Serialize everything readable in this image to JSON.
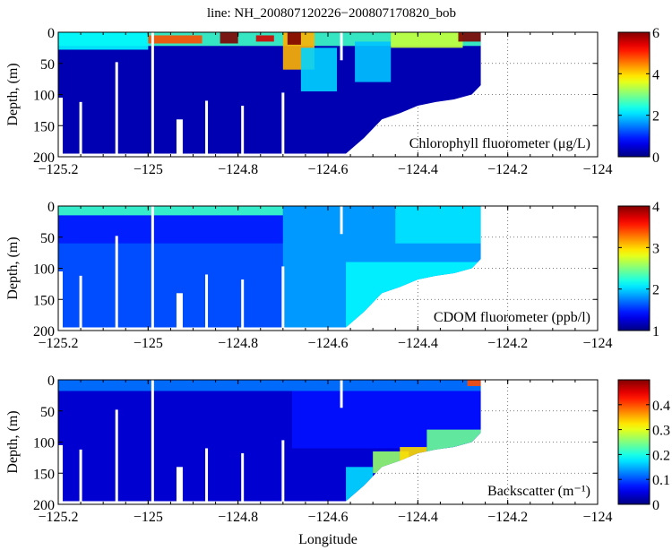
{
  "chart_data": {
    "type": "heatmap",
    "title": "line: NH_200807120226−200807170820_bob",
    "xlabel": "Longitude",
    "xlim": [
      -125.2,
      -124
    ],
    "xticks": [
      -125.2,
      -125,
      -124.8,
      -124.6,
      -124.4,
      -124.2,
      -124
    ],
    "xtick_labels": [
      "−125.2",
      "−125",
      "−124.8",
      "−124.6",
      "−124.4",
      "−124.2",
      "−124"
    ],
    "ylabel": "Depth, (m)",
    "ylim": [
      0,
      200
    ],
    "yticks": [
      0,
      50,
      100,
      150,
      200
    ],
    "grid": "dotted",
    "data_extent": {
      "lon_min": -125.2,
      "lon_max": -124.26,
      "bottom_profile": [
        [
          -125.2,
          105
        ],
        [
          -125.19,
          105
        ],
        [
          -125.19,
          195
        ],
        [
          -124.56,
          195
        ],
        [
          -124.52,
          170
        ],
        [
          -124.48,
          140
        ],
        [
          -124.44,
          130
        ],
        [
          -124.4,
          118
        ],
        [
          -124.36,
          112
        ],
        [
          -124.32,
          108
        ],
        [
          -124.28,
          100
        ],
        [
          -124.26,
          85
        ],
        [
          -124.26,
          0
        ]
      ]
    },
    "gaps": [
      {
        "lon": -125.15,
        "top": 112,
        "bottom": 195
      },
      {
        "lon": -125.07,
        "top": 48,
        "bottom": 195
      },
      {
        "lon": -124.99,
        "top": 0,
        "bottom": 195
      },
      {
        "lon": -124.93,
        "top": 140,
        "bottom": 195,
        "wide": true
      },
      {
        "lon": -124.87,
        "top": 110,
        "bottom": 195
      },
      {
        "lon": -124.79,
        "top": 118,
        "bottom": 195
      },
      {
        "lon": -124.7,
        "top": 97,
        "bottom": 195
      },
      {
        "lon": -124.57,
        "top": 0,
        "bottom": 45
      }
    ],
    "panels": [
      {
        "name": "chlorophyll",
        "label": "Chlorophyll fluorometer (μg/L)",
        "clim": [
          0,
          6
        ],
        "cbar_ticks": [
          "0",
          "2",
          "4",
          "6"
        ],
        "cbar_tick_values": [
          0,
          2,
          4,
          6
        ],
        "base_value": 0.3,
        "features": [
          {
            "lon": [
              -125.2,
              -124.26
            ],
            "depth": [
              0,
              22
            ],
            "value": 2.6
          },
          {
            "lon": [
              -125.2,
              -125.0
            ],
            "depth": [
              0,
              28
            ],
            "value": 2.2
          },
          {
            "lon": [
              -125.0,
              -124.88
            ],
            "depth": [
              5,
              18
            ],
            "value": 4.8
          },
          {
            "lon": [
              -124.84,
              -124.8
            ],
            "depth": [
              0,
              18
            ],
            "value": 6
          },
          {
            "lon": [
              -124.76,
              -124.72
            ],
            "depth": [
              5,
              15
            ],
            "value": 5.5
          },
          {
            "lon": [
              -124.7,
              -124.63
            ],
            "depth": [
              0,
              60
            ],
            "value": 4.2
          },
          {
            "lon": [
              -124.69,
              -124.66
            ],
            "depth": [
              0,
              20
            ],
            "value": 6
          },
          {
            "lon": [
              -124.66,
              -124.58
            ],
            "depth": [
              25,
              95
            ],
            "value": 2.0
          },
          {
            "lon": [
              -124.54,
              -124.46
            ],
            "depth": [
              15,
              80
            ],
            "value": 1.9
          },
          {
            "lon": [
              -124.46,
              -124.3
            ],
            "depth": [
              0,
              25
            ],
            "value": 3.4
          },
          {
            "lon": [
              -124.31,
              -124.26
            ],
            "depth": [
              0,
              15
            ],
            "value": 6
          }
        ]
      },
      {
        "name": "cdom",
        "label": "CDOM fluorometer (ppb/l)",
        "clim": [
          1,
          4
        ],
        "cbar_ticks": [
          "1",
          "2",
          "3",
          "4"
        ],
        "cbar_tick_values": [
          1,
          2,
          3,
          4
        ],
        "base_value": 1.6,
        "features": [
          {
            "lon": [
              -125.2,
              -124.7
            ],
            "depth": [
              0,
              15
            ],
            "value": 2.3
          },
          {
            "lon": [
              -125.2,
              -124.7
            ],
            "depth": [
              15,
              60
            ],
            "value": 1.45
          },
          {
            "lon": [
              -124.7,
              -124.26
            ],
            "depth": [
              0,
              200
            ],
            "value": 1.85
          },
          {
            "lon": [
              -124.45,
              -124.26
            ],
            "depth": [
              0,
              60
            ],
            "value": 2.05
          },
          {
            "lon": [
              -124.56,
              -124.26
            ],
            "depth": [
              90,
              200
            ],
            "value": 2.1
          }
        ]
      },
      {
        "name": "backscatter",
        "label": "Backscatter (m⁻¹)",
        "clim": [
          0,
          0.5
        ],
        "cbar_ticks": [
          "0",
          "0.1",
          "0.2",
          "0.3",
          "0.4"
        ],
        "cbar_tick_values": [
          0,
          0.1,
          0.2,
          0.3,
          0.4
        ],
        "base_value": 0.04,
        "features": [
          {
            "lon": [
              -125.2,
              -124.26
            ],
            "depth": [
              0,
              18
            ],
            "value": 0.12
          },
          {
            "lon": [
              -124.68,
              -124.26
            ],
            "depth": [
              18,
              110
            ],
            "value": 0.07
          },
          {
            "lon": [
              -124.56,
              -124.5
            ],
            "depth": [
              140,
              200
            ],
            "value": 0.17
          },
          {
            "lon": [
              -124.5,
              -124.42
            ],
            "depth": [
              115,
              150
            ],
            "value": 0.26
          },
          {
            "lon": [
              -124.44,
              -124.38
            ],
            "depth": [
              108,
              130
            ],
            "value": 0.33
          },
          {
            "lon": [
              -124.38,
              -124.26
            ],
            "depth": [
              80,
              115
            ],
            "value": 0.24
          },
          {
            "lon": [
              -124.29,
              -124.26
            ],
            "depth": [
              0,
              10
            ],
            "value": 0.4
          }
        ]
      }
    ]
  }
}
